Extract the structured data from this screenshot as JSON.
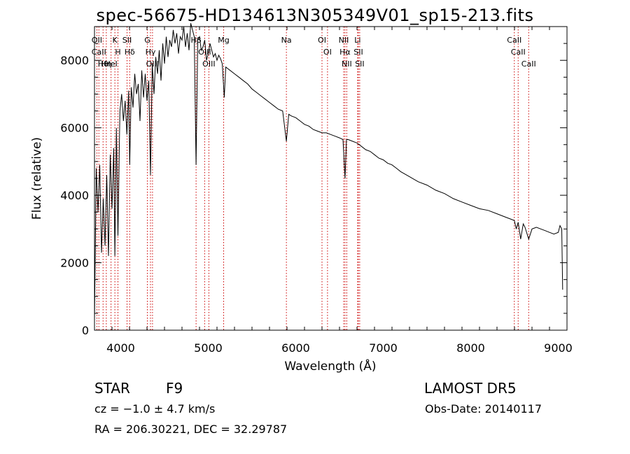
{
  "chart_data": {
    "type": "line",
    "title": "spec-56675-HD134613N305349V01_sp15-213.fits",
    "xlabel": "Wavelength (Å)",
    "ylabel": "Flux (relative)",
    "xlim": [
      3700,
      9100
    ],
    "ylim": [
      0,
      9000
    ],
    "x_ticks": [
      4000,
      5000,
      6000,
      7000,
      8000,
      9000
    ],
    "y_ticks": [
      0,
      2000,
      4000,
      6000,
      8000
    ],
    "grid": false,
    "line_color": "#000000",
    "marker_color": "#cc0000",
    "series": [
      {
        "x": [
          3700,
          3720,
          3740,
          3760,
          3780,
          3800,
          3820,
          3840,
          3860,
          3880,
          3900,
          3920,
          3933,
          3950,
          3968,
          3990,
          4010,
          4030,
          4050,
          4070,
          4090,
          4102,
          4120,
          4140,
          4160,
          4180,
          4200,
          4220,
          4240,
          4260,
          4280,
          4300,
          4320,
          4340,
          4360,
          4380,
          4400,
          4420,
          4440,
          4460,
          4480,
          4500,
          4520,
          4540,
          4560,
          4580,
          4600,
          4620,
          4640,
          4660,
          4680,
          4700,
          4720,
          4740,
          4760,
          4780,
          4800,
          4820,
          4840,
          4861,
          4880,
          4900,
          4920,
          4940,
          4960,
          4980,
          5000,
          5020,
          5040,
          5060,
          5080,
          5100,
          5120,
          5140,
          5160,
          5183,
          5200,
          5250,
          5300,
          5350,
          5400,
          5450,
          5500,
          5550,
          5600,
          5650,
          5700,
          5750,
          5800,
          5850,
          5893,
          5920,
          5950,
          6000,
          6050,
          6100,
          6150,
          6200,
          6250,
          6300,
          6350,
          6400,
          6450,
          6500,
          6540,
          6563,
          6580,
          6600,
          6650,
          6700,
          6750,
          6800,
          6850,
          6900,
          6950,
          7000,
          7050,
          7100,
          7150,
          7200,
          7300,
          7400,
          7500,
          7600,
          7700,
          7800,
          7900,
          8000,
          8100,
          8200,
          8300,
          8400,
          8450,
          8498,
          8520,
          8542,
          8570,
          8600,
          8620,
          8662,
          8700,
          8750,
          8800,
          8850,
          8900,
          8950,
          9000,
          9020,
          9040,
          9050
        ],
        "y": [
          300,
          4800,
          3500,
          4900,
          2300,
          3900,
          2500,
          4600,
          2200,
          5200,
          3600,
          5400,
          2200,
          6000,
          2800,
          6500,
          7000,
          6200,
          6800,
          5800,
          7100,
          4900,
          7200,
          6600,
          7600,
          7000,
          7300,
          6200,
          7700,
          6900,
          7600,
          6800,
          7400,
          4600,
          7900,
          7000,
          8100,
          7600,
          8300,
          7400,
          8500,
          7900,
          8700,
          8100,
          8600,
          8400,
          8900,
          8500,
          8800,
          8200,
          8700,
          8600,
          9000,
          8400,
          8800,
          8300,
          9100,
          8900,
          8700,
          4900,
          8600,
          8700,
          8300,
          8400,
          8600,
          8000,
          8200,
          8500,
          8300,
          8100,
          8200,
          8000,
          8150,
          8050,
          7900,
          6900,
          7800,
          7700,
          7600,
          7500,
          7400,
          7300,
          7150,
          7050,
          6950,
          6850,
          6750,
          6650,
          6550,
          6500,
          5600,
          6400,
          6350,
          6300,
          6200,
          6100,
          6050,
          5950,
          5900,
          5850,
          5850,
          5800,
          5750,
          5700,
          5650,
          4500,
          5650,
          5650,
          5600,
          5550,
          5450,
          5350,
          5300,
          5200,
          5100,
          5050,
          4950,
          4900,
          4800,
          4700,
          4550,
          4400,
          4300,
          4150,
          4050,
          3900,
          3800,
          3700,
          3600,
          3550,
          3450,
          3350,
          3300,
          3250,
          3000,
          3200,
          2700,
          3150,
          3050,
          2700,
          3000,
          3050,
          3000,
          2950,
          2900,
          2850,
          2900,
          3100,
          3000,
          1200
        ]
      }
    ],
    "line_markers": [
      {
        "wavelength": 3727,
        "label": "OII"
      },
      {
        "wavelength": 3750,
        "label": "CaII"
      },
      {
        "wavelength": 3798,
        "label": "Hθ"
      },
      {
        "wavelength": 3835,
        "label": "Hη"
      },
      {
        "wavelength": 3889,
        "label": "HeI"
      },
      {
        "wavelength": 3933,
        "label": "K"
      },
      {
        "wavelength": 3968,
        "label": "H"
      },
      {
        "wavelength": 4072,
        "label": "SII"
      },
      {
        "wavelength": 4102,
        "label": "Hδ"
      },
      {
        "wavelength": 4304,
        "label": "G"
      },
      {
        "wavelength": 4340,
        "label": "Hγ"
      },
      {
        "wavelength": 4363,
        "label": "OIII"
      },
      {
        "wavelength": 4861,
        "label": "Hβ"
      },
      {
        "wavelength": 4959,
        "label": "OIII"
      },
      {
        "wavelength": 5007,
        "label": "OIII"
      },
      {
        "wavelength": 5176,
        "label": "Mg"
      },
      {
        "wavelength": 5893,
        "label": "Na"
      },
      {
        "wavelength": 6300,
        "label": "OI"
      },
      {
        "wavelength": 6363,
        "label": "OI"
      },
      {
        "wavelength": 6548,
        "label": "NII"
      },
      {
        "wavelength": 6563,
        "label": "Hα"
      },
      {
        "wavelength": 6583,
        "label": "NII"
      },
      {
        "wavelength": 6707,
        "label": "Li"
      },
      {
        "wavelength": 6716,
        "label": "SII"
      },
      {
        "wavelength": 6731,
        "label": "SII"
      },
      {
        "wavelength": 8498,
        "label": "CaII"
      },
      {
        "wavelength": 8542,
        "label": "CaII"
      },
      {
        "wavelength": 8662,
        "label": "CaII"
      }
    ]
  },
  "footer": {
    "object_class": "STAR",
    "subclass": "F9",
    "survey": "LAMOST DR5",
    "redshift": "cz = −1.0 ± 4.7 km/s",
    "obs_date": "Obs-Date: 20140117",
    "coords": "RA = 206.30221, DEC =  32.29787"
  }
}
